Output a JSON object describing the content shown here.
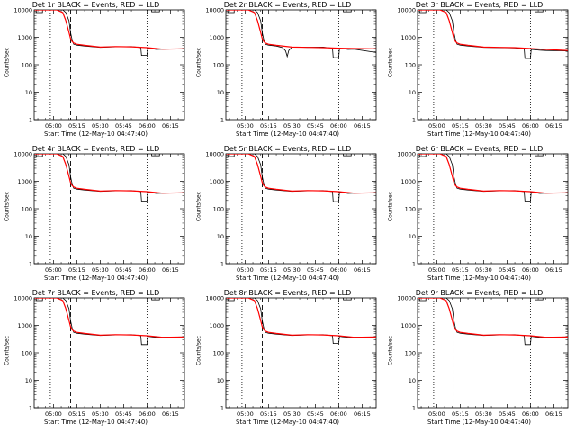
{
  "chart_data": {
    "type": "line",
    "y_scale": "log",
    "ylim": [
      1,
      10000
    ],
    "y_tick_labels": [
      "1",
      "10",
      "100",
      "1000",
      "10000"
    ],
    "x_tick_labels": [
      "05:00",
      "05:15",
      "05:30",
      "05:45",
      "06:00",
      "06:15"
    ],
    "x_ticks_min": [
      300,
      315,
      330,
      345,
      360,
      375
    ],
    "xlim_min": [
      287.67,
      384
    ],
    "vlines_dotted_min": [
      298,
      360
    ],
    "vline_dashed_min": 311,
    "xlabel": "Start Time (12-May-10 04:47:40)",
    "ylabel": "Counts/sec",
    "colors": {
      "events": "#000000",
      "lld": "#ff0000",
      "axes": "#000000"
    },
    "panels": [
      {
        "title": "Det 1r BLACK = Events, RED = LLD",
        "lld": {
          "x": [
            288,
            295,
            302,
            306,
            308,
            310,
            311,
            312,
            313,
            315,
            320,
            330,
            340,
            350,
            360,
            370,
            384
          ],
          "y": [
            10000,
            10000,
            10000,
            8000,
            4000,
            1500,
            900,
            700,
            620,
            560,
            510,
            440,
            460,
            450,
            420,
            370,
            380
          ]
        },
        "events": {
          "x": [
            288,
            289,
            289.01,
            293,
            293.01,
            298,
            306,
            308,
            310,
            311,
            312,
            313,
            315,
            320,
            330,
            340,
            350,
            356,
            356.5,
            360,
            360.5,
            366,
            370,
            384
          ],
          "y": [
            10000,
            10000,
            8000,
            8000,
            10000,
            10000,
            10000,
            8000,
            4000,
            1500,
            800,
            560,
            520,
            480,
            430,
            450,
            460,
            420,
            220,
            220,
            400,
            360,
            370,
            380
          ]
        },
        "steps": [
          {
            "x1": 363,
            "x2": 368,
            "y_top": 10000,
            "y_bot": 8500
          }
        ]
      },
      {
        "title": "Det 2r BLACK = Events, RED = LLD",
        "lld": {
          "x": [
            288,
            295,
            302,
            306,
            308,
            310,
            311,
            312,
            313,
            315,
            320,
            330,
            340,
            350,
            360,
            370,
            384
          ],
          "y": [
            10000,
            10000,
            10000,
            8000,
            4000,
            1500,
            900,
            700,
            620,
            560,
            510,
            440,
            430,
            420,
            400,
            390,
            380
          ]
        },
        "events": {
          "x": [
            288,
            289,
            289.01,
            293,
            293.01,
            298,
            306,
            308,
            310,
            311,
            312,
            313,
            315,
            320,
            324,
            326,
            327,
            328,
            330,
            340,
            350,
            356,
            356.5,
            360,
            360.5,
            366,
            370,
            384
          ],
          "y": [
            10000,
            10000,
            8000,
            8000,
            10000,
            10000,
            10000,
            8000,
            4000,
            1500,
            800,
            560,
            520,
            480,
            420,
            320,
            200,
            330,
            440,
            430,
            440,
            400,
            180,
            180,
            400,
            360,
            370,
            280
          ]
        },
        "steps": [
          {
            "x1": 363,
            "x2": 368,
            "y_top": 10000,
            "y_bot": 8500
          }
        ]
      },
      {
        "title": "Det 3r BLACK = Events, RED = LLD",
        "lld": {
          "x": [
            288,
            295,
            302,
            306,
            308,
            310,
            311,
            312,
            313,
            315,
            320,
            330,
            340,
            350,
            360,
            370,
            384
          ],
          "y": [
            10000,
            10000,
            10000,
            8000,
            4000,
            1500,
            900,
            700,
            620,
            560,
            510,
            440,
            430,
            420,
            390,
            360,
            330
          ]
        },
        "events": {
          "x": [
            288,
            289,
            289.01,
            293,
            293.01,
            298,
            306,
            308,
            310,
            311,
            312,
            313,
            315,
            320,
            330,
            340,
            350,
            356,
            356.5,
            360,
            360.5,
            366,
            370,
            384
          ],
          "y": [
            10000,
            10000,
            8000,
            8000,
            10000,
            10000,
            10000,
            8000,
            4000,
            1500,
            800,
            560,
            520,
            480,
            430,
            420,
            410,
            380,
            170,
            170,
            360,
            340,
            330,
            320
          ]
        },
        "steps": [
          {
            "x1": 363,
            "x2": 368,
            "y_top": 10000,
            "y_bot": 8500
          }
        ]
      },
      {
        "title": "Det 4r BLACK = Events, RED = LLD",
        "lld": {
          "x": [
            288,
            295,
            302,
            306,
            308,
            310,
            311,
            312,
            313,
            315,
            320,
            330,
            340,
            350,
            360,
            370,
            384
          ],
          "y": [
            10000,
            10000,
            10000,
            8000,
            4000,
            1500,
            900,
            700,
            620,
            560,
            510,
            440,
            460,
            450,
            420,
            370,
            380
          ]
        },
        "events": {
          "x": [
            288,
            289,
            289.01,
            293,
            293.01,
            298,
            306,
            308,
            310,
            311,
            312,
            313,
            315,
            320,
            330,
            340,
            350,
            356,
            356.5,
            360,
            360.5,
            366,
            370,
            384
          ],
          "y": [
            10000,
            10000,
            8000,
            8000,
            10000,
            10000,
            10000,
            8000,
            4000,
            1500,
            800,
            560,
            520,
            480,
            430,
            450,
            460,
            420,
            190,
            190,
            400,
            360,
            370,
            380
          ]
        },
        "steps": [
          {
            "x1": 363,
            "x2": 368,
            "y_top": 10000,
            "y_bot": 8500
          }
        ]
      },
      {
        "title": "Det 5r BLACK = Events, RED = LLD",
        "lld": {
          "x": [
            288,
            295,
            302,
            306,
            308,
            310,
            311,
            312,
            313,
            315,
            320,
            330,
            340,
            350,
            360,
            370,
            384
          ],
          "y": [
            10000,
            10000,
            10000,
            8000,
            4000,
            1500,
            900,
            700,
            620,
            560,
            510,
            440,
            460,
            450,
            420,
            370,
            380
          ]
        },
        "events": {
          "x": [
            288,
            289,
            289.01,
            293,
            293.01,
            298,
            306,
            308,
            310,
            311,
            312,
            313,
            315,
            320,
            330,
            340,
            350,
            356,
            356.5,
            360,
            360.5,
            366,
            370,
            384
          ],
          "y": [
            10000,
            10000,
            8000,
            8000,
            10000,
            10000,
            10000,
            8000,
            4000,
            1500,
            800,
            560,
            520,
            480,
            430,
            450,
            460,
            420,
            180,
            180,
            400,
            360,
            370,
            380
          ]
        },
        "steps": [
          {
            "x1": 363,
            "x2": 368,
            "y_top": 10000,
            "y_bot": 8500
          }
        ]
      },
      {
        "title": "Det 6r BLACK = Events, RED = LLD",
        "lld": {
          "x": [
            288,
            295,
            302,
            306,
            308,
            310,
            311,
            312,
            313,
            315,
            320,
            330,
            340,
            350,
            360,
            370,
            384
          ],
          "y": [
            10000,
            10000,
            10000,
            8000,
            4000,
            1500,
            900,
            700,
            620,
            560,
            510,
            440,
            460,
            450,
            420,
            370,
            380
          ]
        },
        "events": {
          "x": [
            288,
            289,
            289.01,
            293,
            293.01,
            298,
            306,
            308,
            310,
            311,
            312,
            313,
            315,
            320,
            330,
            340,
            350,
            356,
            356.5,
            360,
            360.5,
            366,
            370,
            384
          ],
          "y": [
            10000,
            10000,
            8000,
            8000,
            10000,
            10000,
            10000,
            8000,
            4000,
            1500,
            800,
            560,
            520,
            480,
            430,
            450,
            460,
            420,
            190,
            190,
            400,
            360,
            370,
            380
          ]
        },
        "steps": [
          {
            "x1": 363,
            "x2": 368,
            "y_top": 10000,
            "y_bot": 8500
          }
        ]
      },
      {
        "title": "Det 7r BLACK = Events, RED = LLD",
        "lld": {
          "x": [
            288,
            295,
            302,
            306,
            308,
            310,
            311,
            312,
            313,
            315,
            320,
            330,
            340,
            350,
            360,
            370,
            384
          ],
          "y": [
            10000,
            10000,
            10000,
            8000,
            4000,
            1500,
            900,
            700,
            620,
            560,
            510,
            440,
            460,
            450,
            420,
            370,
            380
          ]
        },
        "events": {
          "x": [
            288,
            289,
            289.01,
            293,
            293.01,
            298,
            306,
            308,
            310,
            311,
            312,
            313,
            315,
            320,
            330,
            340,
            350,
            356,
            356.5,
            360,
            360.5,
            366,
            370,
            384
          ],
          "y": [
            10000,
            10000,
            8000,
            8000,
            10000,
            10000,
            10000,
            8000,
            4000,
            1500,
            800,
            560,
            520,
            480,
            430,
            450,
            460,
            420,
            200,
            200,
            400,
            360,
            370,
            380
          ]
        },
        "steps": [
          {
            "x1": 363,
            "x2": 368,
            "y_top": 10000,
            "y_bot": 8500
          }
        ]
      },
      {
        "title": "Det 8r BLACK = Events, RED = LLD",
        "lld": {
          "x": [
            288,
            295,
            302,
            306,
            308,
            310,
            311,
            312,
            313,
            315,
            320,
            330,
            340,
            350,
            360,
            370,
            384
          ],
          "y": [
            10000,
            10000,
            10000,
            8000,
            4000,
            1500,
            900,
            700,
            620,
            560,
            510,
            440,
            460,
            450,
            420,
            370,
            380
          ]
        },
        "events": {
          "x": [
            288,
            289,
            289.01,
            293,
            293.01,
            298,
            306,
            308,
            310,
            311,
            312,
            313,
            315,
            320,
            330,
            340,
            350,
            356,
            356.5,
            360,
            360.5,
            366,
            370,
            384
          ],
          "y": [
            10000,
            10000,
            8000,
            8000,
            10000,
            10000,
            10000,
            8000,
            4000,
            1500,
            800,
            560,
            520,
            480,
            430,
            450,
            460,
            420,
            220,
            220,
            400,
            360,
            370,
            380
          ]
        },
        "steps": [
          {
            "x1": 363,
            "x2": 368,
            "y_top": 10000,
            "y_bot": 8500
          }
        ]
      },
      {
        "title": "Det 9r BLACK = Events, RED = LLD",
        "lld": {
          "x": [
            288,
            295,
            302,
            306,
            308,
            310,
            311,
            312,
            313,
            315,
            320,
            330,
            340,
            350,
            360,
            370,
            384
          ],
          "y": [
            10000,
            10000,
            10000,
            8000,
            4000,
            1500,
            900,
            700,
            620,
            560,
            510,
            440,
            460,
            450,
            420,
            370,
            380
          ]
        },
        "events": {
          "x": [
            288,
            289,
            289.01,
            293,
            293.01,
            298,
            306,
            308,
            310,
            311,
            312,
            313,
            315,
            320,
            330,
            340,
            350,
            356,
            356.5,
            360,
            360.5,
            366,
            370,
            384
          ],
          "y": [
            10000,
            10000,
            8000,
            8000,
            10000,
            10000,
            10000,
            8000,
            4000,
            1500,
            800,
            560,
            520,
            480,
            430,
            450,
            460,
            420,
            200,
            200,
            400,
            360,
            370,
            380
          ]
        },
        "steps": [
          {
            "x1": 363,
            "x2": 368,
            "y_top": 10000,
            "y_bot": 8500
          }
        ]
      }
    ]
  }
}
